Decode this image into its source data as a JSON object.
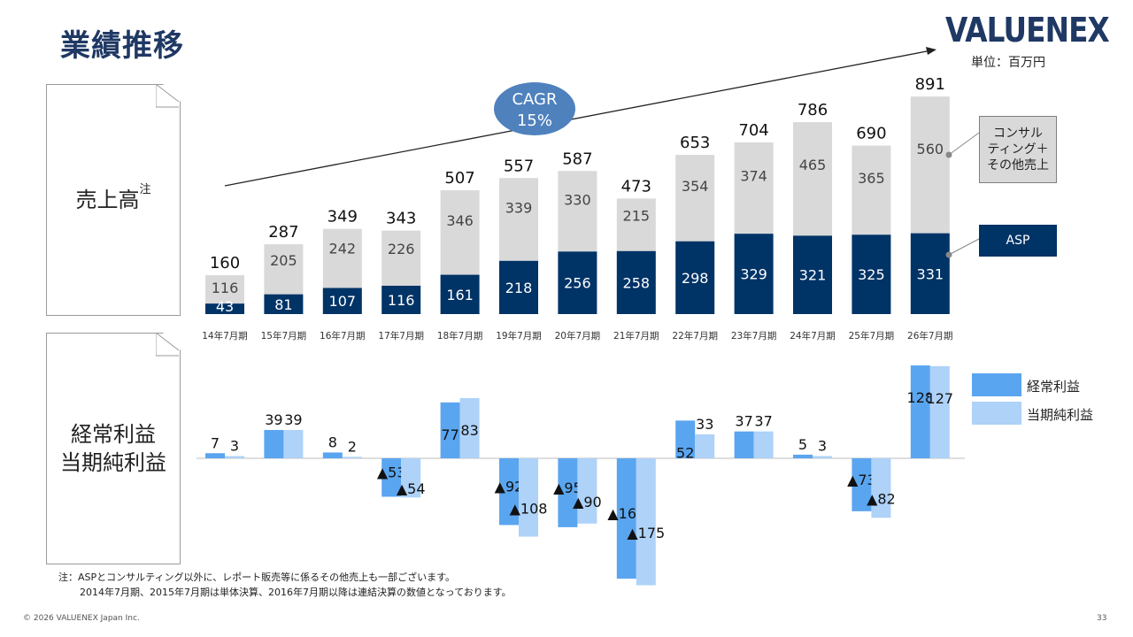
{
  "page": {
    "title": "業績推移",
    "logo": "VALUENEX",
    "unit": "単位：百万円",
    "page_number": "33",
    "copyright": "© 2026 VALUENEX Japan Inc."
  },
  "labels": {
    "sales": "売上高",
    "sales_sup": "注",
    "profit_line1": "経常利益",
    "profit_line2": "当期純利益"
  },
  "cagr": {
    "line1": "CAGR",
    "line2": "15%"
  },
  "legend_top": {
    "consulting": "コンサル ティング＋ その他売上",
    "consulting_lines": [
      "コンサル",
      "ティング＋",
      "その他売上"
    ],
    "asp": "ASP"
  },
  "legend_profit": {
    "ordinary": "経常利益",
    "net": "当期純利益"
  },
  "note": {
    "line1": "注：ASPとコンサルティング以外に、レポート販売等に係るその他売上も一部ございます。",
    "line2": "2014年7月期、2015年7月期は単体決算、2016年7月期以降は連結決算の数値となっております。"
  },
  "colors": {
    "asp": "#003366",
    "consulting": "#d9d9d9",
    "ordinary": "#5aa5f0",
    "net": "#aed2f8",
    "title": "#1f3864",
    "cagr": "#4f81bd"
  },
  "chart_data": [
    {
      "type": "bar",
      "stacked": true,
      "categories": [
        "14年7月期",
        "15年7月期",
        "16年7月期",
        "17年7月期",
        "18年7月期",
        "19年7月期",
        "20年7月期",
        "21年7月期",
        "22年7月期",
        "23年7月期",
        "24年7月期",
        "25年7月期",
        "26年7月期"
      ],
      "series": [
        {
          "name": "ASP",
          "values": [
            43,
            81,
            107,
            116,
            161,
            218,
            256,
            258,
            298,
            329,
            321,
            325,
            331
          ]
        },
        {
          "name": "コンサルティング＋その他売上",
          "values": [
            116,
            205,
            242,
            226,
            346,
            339,
            330,
            215,
            354,
            374,
            465,
            365,
            560
          ]
        }
      ],
      "totals": [
        160,
        287,
        349,
        343,
        507,
        557,
        587,
        473,
        653,
        704,
        786,
        690,
        891
      ],
      "ylim": [
        0,
        900
      ]
    },
    {
      "type": "bar",
      "categories": [
        "14年7月期",
        "15年7月期",
        "16年7月期",
        "17年7月期",
        "18年7月期",
        "19年7月期",
        "20年7月期",
        "21年7月期",
        "22年7月期",
        "23年7月期",
        "24年7月期",
        "25年7月期",
        "26年7月期"
      ],
      "series": [
        {
          "name": "経常利益",
          "values": [
            7,
            39,
            8,
            -53,
            77,
            -92,
            -95,
            -166,
            52,
            37,
            5,
            -73,
            128
          ]
        },
        {
          "name": "当期純利益",
          "values": [
            3,
            39,
            2,
            -54,
            83,
            -108,
            -90,
            -175,
            33,
            37,
            3,
            -82,
            127
          ]
        }
      ],
      "ylim": [
        -175,
        128
      ]
    }
  ]
}
